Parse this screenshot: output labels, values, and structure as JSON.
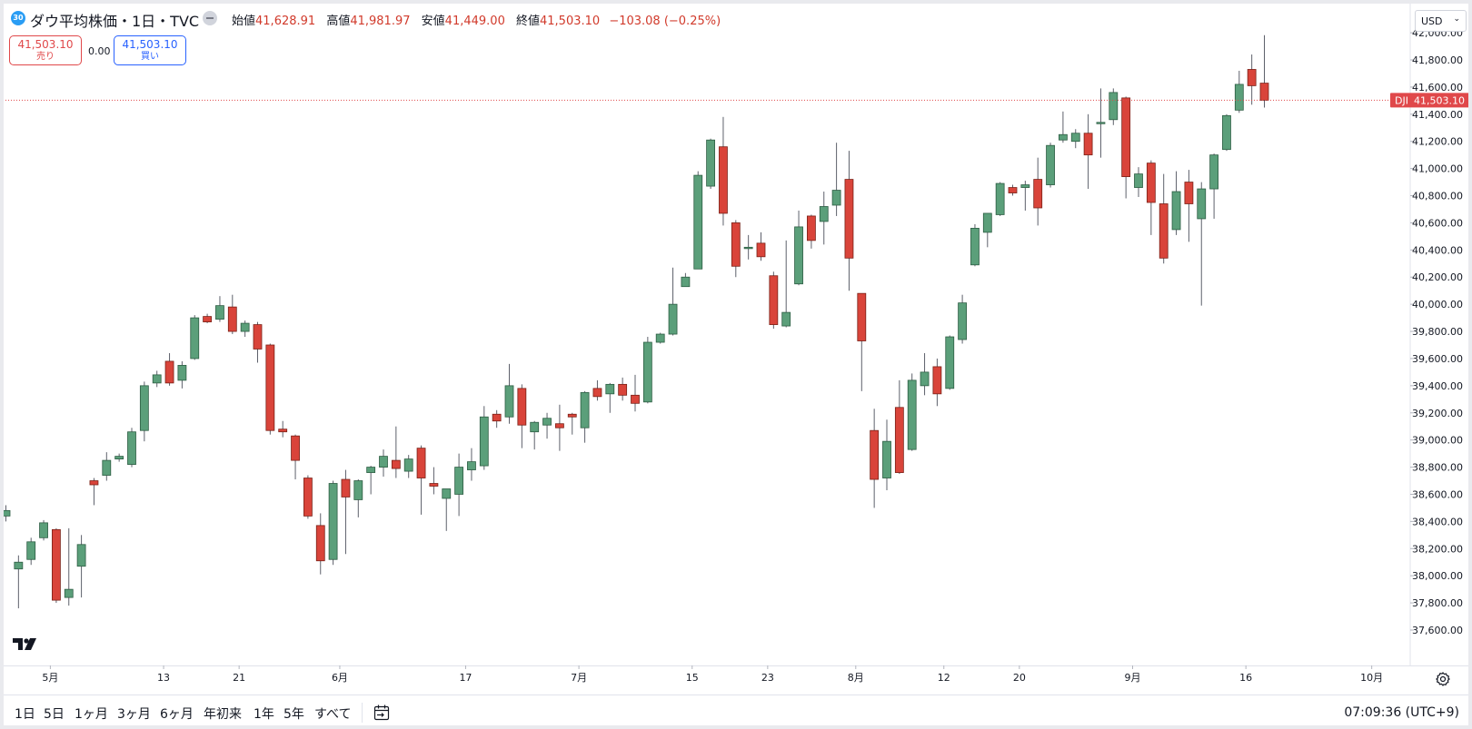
{
  "header": {
    "badge": "30",
    "title": "ダウ平均株価・1日・TVC",
    "open_label": "始値",
    "open": "41,628.91",
    "high_label": "高値",
    "high": "41,981.97",
    "low_label": "安値",
    "low": "41,449.00",
    "close_label": "終値",
    "close": "41,503.10",
    "change": "−103.08 (−0.25%)"
  },
  "quote": {
    "sell_price": "41,503.10",
    "sell_label": "売り",
    "spread": "0.00",
    "buy_price": "41,503.10",
    "buy_label": "買い"
  },
  "currency": "USD",
  "price_tag": {
    "symbol": "DJI",
    "value": "41,503.10"
  },
  "bottom_bar": {
    "ranges": [
      "1日",
      "5日",
      "1ヶ月",
      "3ヶ月",
      "6ヶ月",
      "年初来",
      "1年",
      "5年",
      "すべて"
    ],
    "clock": "07:09:36 (UTC+9)"
  },
  "colors": {
    "up": "#5b9f7a",
    "down": "#d9443a",
    "price_line": "#e0484a",
    "up_border": "#2d5d43",
    "down_border": "#7a2117"
  },
  "icons": [
    "calendar-range-icon",
    "settings-gear-icon",
    "tradingview-logo",
    "chevron-down-icon"
  ],
  "chart_data": {
    "type": "candlestick",
    "ylim": [
      37500,
      42000
    ],
    "yticks": [
      37600,
      37800,
      38000,
      38200,
      38400,
      38600,
      38800,
      39000,
      39200,
      39400,
      39600,
      39800,
      40000,
      40200,
      40400,
      40600,
      40800,
      41000,
      41200,
      41400,
      41600,
      41800,
      42000
    ],
    "x_labels": [
      {
        "label": "5月",
        "index": 4
      },
      {
        "label": "13",
        "index": 13
      },
      {
        "label": "21",
        "index": 19
      },
      {
        "label": "6月",
        "index": 27
      },
      {
        "label": "17",
        "index": 37
      },
      {
        "label": "7月",
        "index": 46
      },
      {
        "label": "15",
        "index": 55
      },
      {
        "label": "23",
        "index": 61
      },
      {
        "label": "8月",
        "index": 68
      },
      {
        "label": "12",
        "index": 75
      },
      {
        "label": "20",
        "index": 81
      },
      {
        "label": "9月",
        "index": 90
      },
      {
        "label": "16",
        "index": 99
      },
      {
        "label": "10月",
        "index": 109
      }
    ],
    "last_price": 41503.1,
    "candles": [
      {
        "o": 38440,
        "h": 38520,
        "l": 38400,
        "c": 38480
      },
      {
        "o": 38050,
        "h": 38150,
        "l": 37760,
        "c": 38100
      },
      {
        "o": 38120,
        "h": 38280,
        "l": 38080,
        "c": 38250
      },
      {
        "o": 38280,
        "h": 38410,
        "l": 38260,
        "c": 38390
      },
      {
        "o": 38340,
        "h": 38350,
        "l": 37800,
        "c": 37820
      },
      {
        "o": 37840,
        "h": 38350,
        "l": 37780,
        "c": 37900
      },
      {
        "o": 38070,
        "h": 38300,
        "l": 37840,
        "c": 38230
      },
      {
        "o": 38700,
        "h": 38720,
        "l": 38520,
        "c": 38670
      },
      {
        "o": 38740,
        "h": 38910,
        "l": 38700,
        "c": 38850
      },
      {
        "o": 38860,
        "h": 38900,
        "l": 38840,
        "c": 38880
      },
      {
        "o": 38820,
        "h": 39090,
        "l": 38800,
        "c": 39060
      },
      {
        "o": 39070,
        "h": 39430,
        "l": 38990,
        "c": 39400
      },
      {
        "o": 39420,
        "h": 39510,
        "l": 39390,
        "c": 39480
      },
      {
        "o": 39580,
        "h": 39640,
        "l": 39400,
        "c": 39420
      },
      {
        "o": 39440,
        "h": 39580,
        "l": 39380,
        "c": 39550
      },
      {
        "o": 39600,
        "h": 39920,
        "l": 39590,
        "c": 39900
      },
      {
        "o": 39910,
        "h": 39930,
        "l": 39860,
        "c": 39870
      },
      {
        "o": 39890,
        "h": 40060,
        "l": 39870,
        "c": 39990
      },
      {
        "o": 39980,
        "h": 40070,
        "l": 39780,
        "c": 39800
      },
      {
        "o": 39800,
        "h": 39880,
        "l": 39760,
        "c": 39860
      },
      {
        "o": 39850,
        "h": 39870,
        "l": 39570,
        "c": 39670
      },
      {
        "o": 39700,
        "h": 39710,
        "l": 39040,
        "c": 39070
      },
      {
        "o": 39080,
        "h": 39140,
        "l": 39020,
        "c": 39060
      },
      {
        "o": 39030,
        "h": 39040,
        "l": 38710,
        "c": 38850
      },
      {
        "o": 38720,
        "h": 38740,
        "l": 38420,
        "c": 38440
      },
      {
        "o": 38370,
        "h": 38460,
        "l": 38010,
        "c": 38110
      },
      {
        "o": 38120,
        "h": 38700,
        "l": 38080,
        "c": 38680
      },
      {
        "o": 38710,
        "h": 38780,
        "l": 38160,
        "c": 38580
      },
      {
        "o": 38560,
        "h": 38710,
        "l": 38430,
        "c": 38700
      },
      {
        "o": 38760,
        "h": 38810,
        "l": 38600,
        "c": 38800
      },
      {
        "o": 38800,
        "h": 38930,
        "l": 38730,
        "c": 38880
      },
      {
        "o": 38850,
        "h": 39100,
        "l": 38720,
        "c": 38790
      },
      {
        "o": 38770,
        "h": 38890,
        "l": 38720,
        "c": 38860
      },
      {
        "o": 38940,
        "h": 38960,
        "l": 38450,
        "c": 38720
      },
      {
        "o": 38680,
        "h": 38800,
        "l": 38600,
        "c": 38660
      },
      {
        "o": 38570,
        "h": 38640,
        "l": 38330,
        "c": 38640
      },
      {
        "o": 38600,
        "h": 38900,
        "l": 38440,
        "c": 38800
      },
      {
        "o": 38780,
        "h": 38940,
        "l": 38700,
        "c": 38840
      },
      {
        "o": 38810,
        "h": 39250,
        "l": 38780,
        "c": 39170
      },
      {
        "o": 39190,
        "h": 39220,
        "l": 39090,
        "c": 39140
      },
      {
        "o": 39170,
        "h": 39560,
        "l": 39120,
        "c": 39400
      },
      {
        "o": 39380,
        "h": 39410,
        "l": 38940,
        "c": 39110
      },
      {
        "o": 39060,
        "h": 39140,
        "l": 38930,
        "c": 39130
      },
      {
        "o": 39110,
        "h": 39200,
        "l": 39010,
        "c": 39160
      },
      {
        "o": 39120,
        "h": 39260,
        "l": 38920,
        "c": 39090
      },
      {
        "o": 39190,
        "h": 39200,
        "l": 39040,
        "c": 39170
      },
      {
        "o": 39090,
        "h": 39360,
        "l": 38980,
        "c": 39350
      },
      {
        "o": 39380,
        "h": 39440,
        "l": 39290,
        "c": 39320
      },
      {
        "o": 39340,
        "h": 39420,
        "l": 39200,
        "c": 39410
      },
      {
        "o": 39410,
        "h": 39460,
        "l": 39290,
        "c": 39330
      },
      {
        "o": 39330,
        "h": 39480,
        "l": 39210,
        "c": 39270
      },
      {
        "o": 39280,
        "h": 39760,
        "l": 39270,
        "c": 39720
      },
      {
        "o": 39720,
        "h": 39790,
        "l": 39710,
        "c": 39780
      },
      {
        "o": 39780,
        "h": 40270,
        "l": 39770,
        "c": 40000
      },
      {
        "o": 40130,
        "h": 40230,
        "l": 40130,
        "c": 40200
      },
      {
        "o": 40260,
        "h": 40980,
        "l": 40260,
        "c": 40950
      },
      {
        "o": 40870,
        "h": 41220,
        "l": 40850,
        "c": 41210
      },
      {
        "o": 41160,
        "h": 41380,
        "l": 40580,
        "c": 40670
      },
      {
        "o": 40600,
        "h": 40620,
        "l": 40200,
        "c": 40280
      },
      {
        "o": 40420,
        "h": 40510,
        "l": 40330,
        "c": 40420
      },
      {
        "o": 40450,
        "h": 40530,
        "l": 40320,
        "c": 40350
      },
      {
        "o": 40210,
        "h": 40240,
        "l": 39820,
        "c": 39850
      },
      {
        "o": 39840,
        "h": 40470,
        "l": 39830,
        "c": 39940
      },
      {
        "o": 40150,
        "h": 40690,
        "l": 40140,
        "c": 40570
      },
      {
        "o": 40650,
        "h": 40660,
        "l": 40410,
        "c": 40470
      },
      {
        "o": 40610,
        "h": 40830,
        "l": 40440,
        "c": 40720
      },
      {
        "o": 40730,
        "h": 41190,
        "l": 40650,
        "c": 40840
      },
      {
        "o": 40920,
        "h": 41130,
        "l": 40100,
        "c": 40340
      },
      {
        "o": 40080,
        "h": 40080,
        "l": 39360,
        "c": 39730
      },
      {
        "o": 39070,
        "h": 39230,
        "l": 38500,
        "c": 38710
      },
      {
        "o": 38720,
        "h": 39150,
        "l": 38630,
        "c": 38990
      },
      {
        "o": 39240,
        "h": 39440,
        "l": 38750,
        "c": 38760
      },
      {
        "o": 38930,
        "h": 39490,
        "l": 38920,
        "c": 39440
      },
      {
        "o": 39400,
        "h": 39640,
        "l": 39330,
        "c": 39500
      },
      {
        "o": 39540,
        "h": 39600,
        "l": 39250,
        "c": 39340
      },
      {
        "o": 39380,
        "h": 39770,
        "l": 39370,
        "c": 39760
      },
      {
        "o": 39740,
        "h": 40070,
        "l": 39710,
        "c": 40010
      },
      {
        "o": 40290,
        "h": 40590,
        "l": 40280,
        "c": 40560
      },
      {
        "o": 40530,
        "h": 40670,
        "l": 40420,
        "c": 40670
      },
      {
        "o": 40660,
        "h": 40900,
        "l": 40650,
        "c": 40890
      },
      {
        "o": 40860,
        "h": 40880,
        "l": 40800,
        "c": 40820
      },
      {
        "o": 40860,
        "h": 40910,
        "l": 40690,
        "c": 40880
      },
      {
        "o": 40920,
        "h": 41080,
        "l": 40580,
        "c": 40710
      },
      {
        "o": 40880,
        "h": 41190,
        "l": 40860,
        "c": 41170
      },
      {
        "o": 41210,
        "h": 41420,
        "l": 41190,
        "c": 41250
      },
      {
        "o": 41200,
        "h": 41290,
        "l": 41150,
        "c": 41260
      },
      {
        "o": 41260,
        "h": 41400,
        "l": 40850,
        "c": 41100
      },
      {
        "o": 41330,
        "h": 41590,
        "l": 41080,
        "c": 41340
      },
      {
        "o": 41360,
        "h": 41590,
        "l": 41320,
        "c": 41560
      },
      {
        "o": 41520,
        "h": 41530,
        "l": 40780,
        "c": 40940
      },
      {
        "o": 40860,
        "h": 41010,
        "l": 40790,
        "c": 40960
      },
      {
        "o": 41040,
        "h": 41060,
        "l": 40510,
        "c": 40750
      },
      {
        "o": 40740,
        "h": 40960,
        "l": 40300,
        "c": 40340
      },
      {
        "o": 40550,
        "h": 40980,
        "l": 40510,
        "c": 40830
      },
      {
        "o": 40900,
        "h": 40990,
        "l": 40460,
        "c": 40740
      },
      {
        "o": 40630,
        "h": 40900,
        "l": 39990,
        "c": 40850
      },
      {
        "o": 40850,
        "h": 41110,
        "l": 40630,
        "c": 41100
      },
      {
        "o": 41140,
        "h": 41400,
        "l": 41130,
        "c": 41390
      },
      {
        "o": 41430,
        "h": 41720,
        "l": 41410,
        "c": 41620
      },
      {
        "o": 41730,
        "h": 41840,
        "l": 41470,
        "c": 41610
      },
      {
        "o": 41628.91,
        "h": 41981.97,
        "l": 41449.0,
        "c": 41503.1
      }
    ]
  }
}
